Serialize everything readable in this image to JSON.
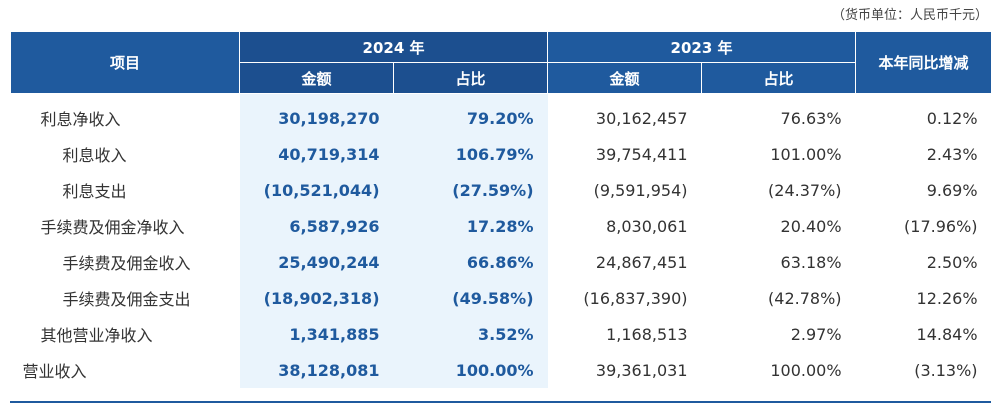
{
  "unit_note": "（货币单位：人民币千元）",
  "headers": {
    "item": "项目",
    "year_2024": "2024 年",
    "year_2023": "2023 年",
    "yoy": "本年同比增减",
    "amount": "金额",
    "share": "占比"
  },
  "rows": [
    {
      "label": "利息净收入",
      "indent": 1,
      "a2024": "30,198,270",
      "p2024": "79.20%",
      "a2023": "30,162,457",
      "p2023": "76.63%",
      "yoy": "0.12%"
    },
    {
      "label": "利息收入",
      "indent": 2,
      "a2024": "40,719,314",
      "p2024": "106.79%",
      "a2023": "39,754,411",
      "p2023": "101.00%",
      "yoy": "2.43%"
    },
    {
      "label": "利息支出",
      "indent": 2,
      "a2024": "(10,521,044)",
      "p2024": "(27.59%)",
      "a2023": "(9,591,954)",
      "p2023": "(24.37%)",
      "yoy": "9.69%"
    },
    {
      "label": "手续费及佣金净收入",
      "indent": 1,
      "a2024": "6,587,926",
      "p2024": "17.28%",
      "a2023": "8,030,061",
      "p2023": "20.40%",
      "yoy": "(17.96%)"
    },
    {
      "label": "手续费及佣金收入",
      "indent": 2,
      "a2024": "25,490,244",
      "p2024": "66.86%",
      "a2023": "24,867,451",
      "p2023": "63.18%",
      "yoy": "2.50%"
    },
    {
      "label": "手续费及佣金支出",
      "indent": 2,
      "a2024": "(18,902,318)",
      "p2024": "(49.58%)",
      "a2023": "(16,837,390)",
      "p2023": "(42.78%)",
      "yoy": "12.26%"
    },
    {
      "label": "其他营业净收入",
      "indent": 1,
      "a2024": "1,341,885",
      "p2024": "3.52%",
      "a2023": "1,168,513",
      "p2023": "2.97%",
      "yoy": "14.84%"
    },
    {
      "label": "营业收入",
      "indent": 0,
      "a2024": "38,128,081",
      "p2024": "100.00%",
      "a2023": "39,361,031",
      "p2023": "100.00%",
      "yoy": "(3.13%)"
    }
  ]
}
